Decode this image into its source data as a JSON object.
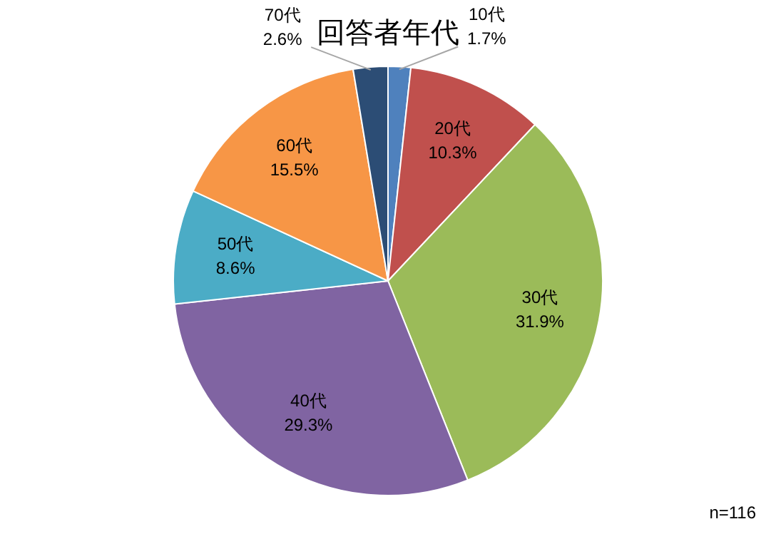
{
  "chart_data": {
    "type": "pie",
    "title": "回答者年代",
    "categories": [
      "10代",
      "20代",
      "30代",
      "40代",
      "50代",
      "60代",
      "70代"
    ],
    "values": [
      1.7,
      10.3,
      31.9,
      29.3,
      8.6,
      15.5,
      2.6
    ],
    "value_labels": [
      "1.7%",
      "10.3%",
      "31.9%",
      "29.3%",
      "8.6%",
      "15.5%",
      "2.6%"
    ],
    "colors": [
      "#4f81bd",
      "#c0504d",
      "#9bbb59",
      "#8064a2",
      "#4bacc6",
      "#f79646",
      "#2c4d75"
    ],
    "legend": false,
    "annotations": [
      "n=116"
    ]
  }
}
